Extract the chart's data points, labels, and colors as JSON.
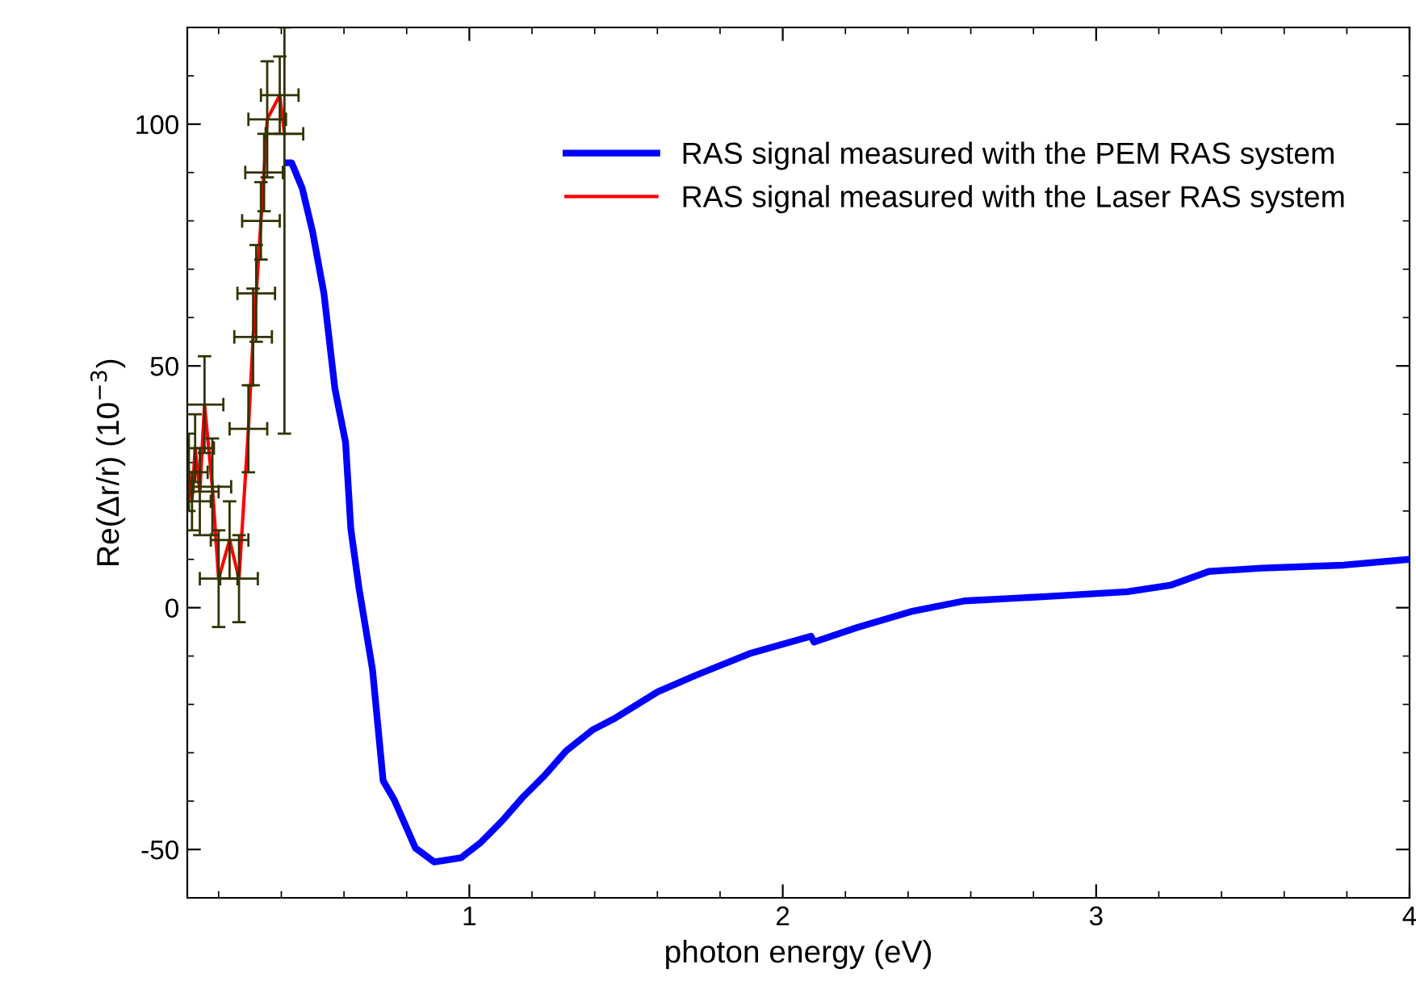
{
  "chart_data": {
    "type": "line",
    "xlabel": "photon energy (eV)",
    "ylabel": "Re(Δr/r) (10$^{−3}$)",
    "xlim": [
      0.1,
      4
    ],
    "xticks": [
      1,
      2,
      3,
      4
    ],
    "ylim": [
      -60,
      120
    ],
    "yticks": [
      -50,
      0,
      50,
      100
    ],
    "grid": false,
    "legend": "top right",
    "series": [
      {
        "name": "RAS signal measured with the PEM RAS system",
        "color": "#0000ff",
        "x": [
          0.42,
          0.433,
          0.467,
          0.5,
          0.536,
          0.571,
          0.605,
          0.622,
          0.648,
          0.691,
          0.725,
          0.76,
          0.794,
          0.828,
          0.888,
          0.974,
          1.034,
          1.103,
          1.172,
          1.24,
          1.309,
          1.395,
          1.464,
          1.601,
          1.722,
          1.894,
          2.09,
          2.1,
          2.237,
          2.41,
          2.58,
          2.84,
          3.1,
          3.24,
          3.36,
          3.53,
          3.79,
          4.0
        ],
        "values": [
          92,
          92,
          86.7,
          77.7,
          65,
          45.3,
          34.2,
          16.2,
          4,
          -12.8,
          -35.8,
          -39.7,
          -44.7,
          -49.7,
          -52.6,
          -51.7,
          -48.7,
          -44.2,
          -39.1,
          -34.7,
          -29.6,
          -25.2,
          -22.9,
          -17.4,
          -14,
          -9.5,
          -5.9,
          -7.1,
          -4.1,
          -0.8,
          1.4,
          2.3,
          3.3,
          4.7,
          7.5,
          8.2,
          8.8,
          10
        ]
      },
      {
        "name": "RAS signal measured with the Laser RAS system",
        "color": "#ff0000",
        "x": [
          0.105,
          0.115,
          0.125,
          0.14,
          0.155,
          0.18,
          0.2,
          0.235,
          0.265,
          0.295,
          0.31,
          0.32,
          0.335,
          0.345,
          0.355,
          0.395,
          0.41
        ],
        "values": [
          28,
          22,
          33,
          24,
          42,
          25,
          6,
          14,
          6,
          37,
          56,
          65,
          80,
          90,
          101,
          106,
          98
        ],
        "errors": [
          8,
          6,
          7,
          9,
          10,
          10,
          10,
          8,
          9,
          9,
          10,
          10,
          8,
          8,
          12,
          8,
          [
            36,
            120
          ]
        ],
        "xerrors": [
          0.06,
          0.06,
          0.06,
          0.06,
          0.06,
          0.06,
          0.06,
          0.06,
          0.06,
          0.06,
          0.06,
          0.06,
          0.06,
          0.06,
          0.06,
          0.06,
          0.06
        ]
      }
    ]
  }
}
